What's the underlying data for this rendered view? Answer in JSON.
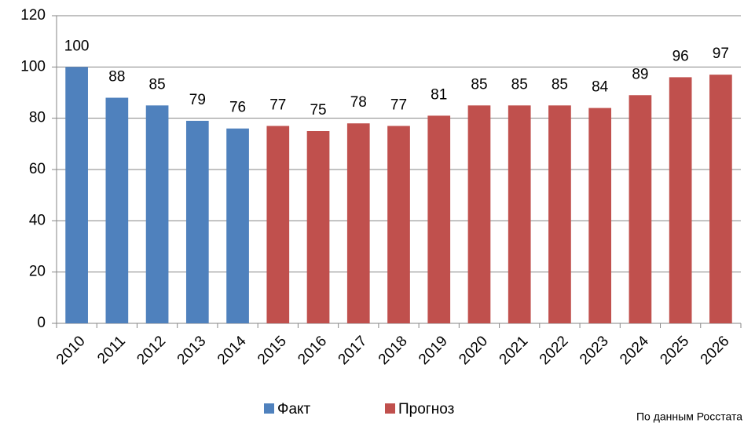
{
  "chart_data": {
    "type": "bar",
    "categories": [
      "2010",
      "2011",
      "2012",
      "2013",
      "2014",
      "2015",
      "2016",
      "2017",
      "2018",
      "2019",
      "2020",
      "2021",
      "2022",
      "2023",
      "2024",
      "2025",
      "2026"
    ],
    "series": [
      {
        "name": "Факт",
        "color": "#4f81bd",
        "values": [
          100,
          88,
          85,
          79,
          76,
          null,
          null,
          null,
          null,
          null,
          null,
          null,
          null,
          null,
          null,
          null,
          null
        ]
      },
      {
        "name": "Прогноз",
        "color": "#c0504d",
        "values": [
          null,
          null,
          null,
          null,
          null,
          77,
          75,
          78,
          77,
          81,
          85,
          85,
          85,
          84,
          89,
          96,
          97
        ]
      }
    ],
    "ylim": [
      0,
      120
    ],
    "yticks": [
      0,
      20,
      40,
      60,
      80,
      100,
      120
    ],
    "grid": true,
    "legend": "bottom",
    "annotation": "По данным Росстата"
  }
}
